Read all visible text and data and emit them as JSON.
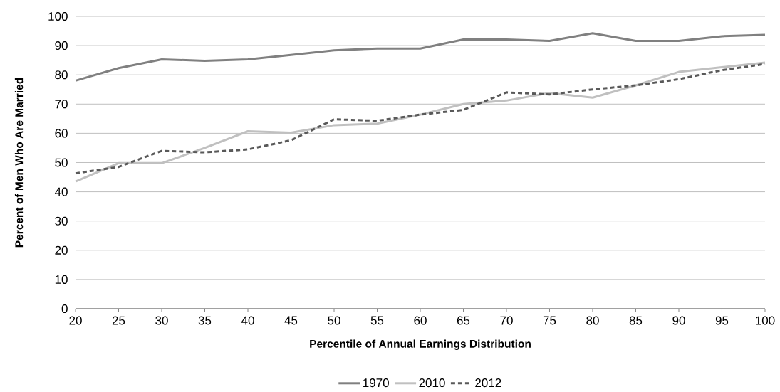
{
  "chart_data": {
    "type": "line",
    "xlabel": "Percentile of Annual Earnings Distribution",
    "ylabel": "Percent of Men Who Are Married",
    "x": [
      20,
      25,
      30,
      35,
      40,
      45,
      50,
      55,
      60,
      65,
      70,
      75,
      80,
      85,
      90,
      95,
      100
    ],
    "series": [
      {
        "name": "1970",
        "color": "#808080",
        "line_style": "solid",
        "values": [
          78,
          82.3,
          85.3,
          84.8,
          85.3,
          86.8,
          88.4,
          89,
          89,
          92.1,
          92.1,
          91.6,
          94.2,
          91.6,
          91.6,
          93.2,
          93.7
        ]
      },
      {
        "name": "2010",
        "color": "#c0c0c0",
        "line_style": "solid",
        "values": [
          43.5,
          49.8,
          49.8,
          55,
          60.7,
          60.2,
          62.8,
          63.3,
          66.4,
          70,
          71.2,
          73.8,
          72.2,
          76.4,
          81,
          82.6,
          84.2
        ]
      },
      {
        "name": "2012",
        "color": "#595959",
        "line_style": "dashed",
        "values": [
          46.3,
          48.5,
          54,
          53.5,
          54.5,
          57.6,
          64.8,
          64.3,
          66.4,
          68,
          74,
          73.3,
          75,
          76.4,
          78.5,
          81.6,
          83.7
        ]
      }
    ],
    "xlim": [
      20,
      100
    ],
    "xticks": [
      20,
      25,
      30,
      35,
      40,
      45,
      50,
      55,
      60,
      65,
      70,
      75,
      80,
      85,
      90,
      95,
      100
    ],
    "ylim": [
      0,
      100
    ],
    "yticks": [
      0,
      10,
      20,
      30,
      40,
      50,
      60,
      70,
      80,
      90,
      100
    ],
    "grid": "y",
    "legend": "bottom"
  }
}
